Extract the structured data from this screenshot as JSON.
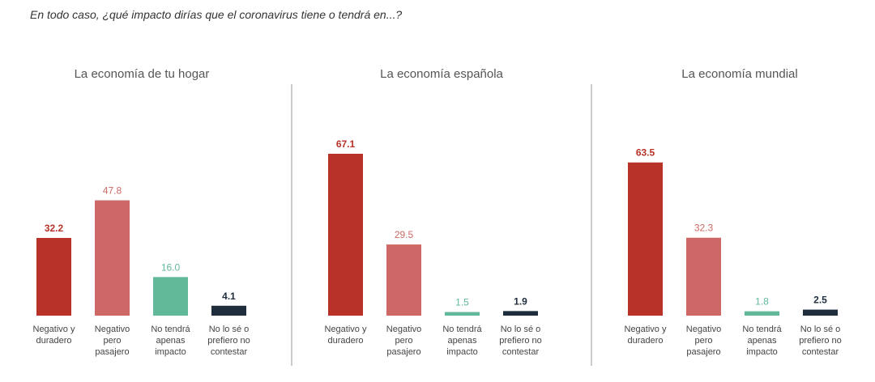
{
  "question": "En todo caso, ¿qué impacto dirías que el coronavirus tiene o tendrá en...?",
  "colors": {
    "series": [
      "#b83227",
      "#cd6866",
      "#62b99a",
      "#1f2d3d"
    ],
    "value_labels": [
      "#b83227",
      "#cd6866",
      "#62b99a",
      "#1f2d3d"
    ]
  },
  "chart_data": [
    {
      "type": "bar",
      "title": "La economía de tu hogar",
      "categories": [
        "Negativo y duradero",
        "Negativo pero pasajero",
        "No tendrá apenas impacto",
        "No lo sé o prefiero no contestar"
      ],
      "values": [
        32.2,
        47.8,
        16.0,
        4.1
      ],
      "value_labels": [
        "32.2",
        "47.8",
        "16.0",
        "4.1"
      ],
      "xlabel": "",
      "ylabel": "",
      "ylim": [
        0,
        70
      ],
      "grid": false
    },
    {
      "type": "bar",
      "title": "La economía española",
      "categories": [
        "Negativo y duradero",
        "Negativo pero pasajero",
        "No tendrá apenas impacto",
        "No lo sé o prefiero no contestar"
      ],
      "values": [
        67.1,
        29.5,
        1.5,
        1.9
      ],
      "value_labels": [
        "67.1",
        "29.5",
        "1.5",
        "1.9"
      ],
      "xlabel": "",
      "ylabel": "",
      "ylim": [
        0,
        70
      ],
      "grid": false
    },
    {
      "type": "bar",
      "title": "La economía mundial",
      "categories": [
        "Negativo y duradero",
        "Negativo pero pasajero",
        "No tendrá apenas impacto",
        "No lo sé o prefiero no contestar"
      ],
      "values": [
        63.5,
        32.3,
        1.8,
        2.5
      ],
      "value_labels": [
        "63.5",
        "32.3",
        "1.8",
        "2.5"
      ],
      "xlabel": "",
      "ylabel": "",
      "ylim": [
        0,
        70
      ],
      "grid": false
    }
  ]
}
